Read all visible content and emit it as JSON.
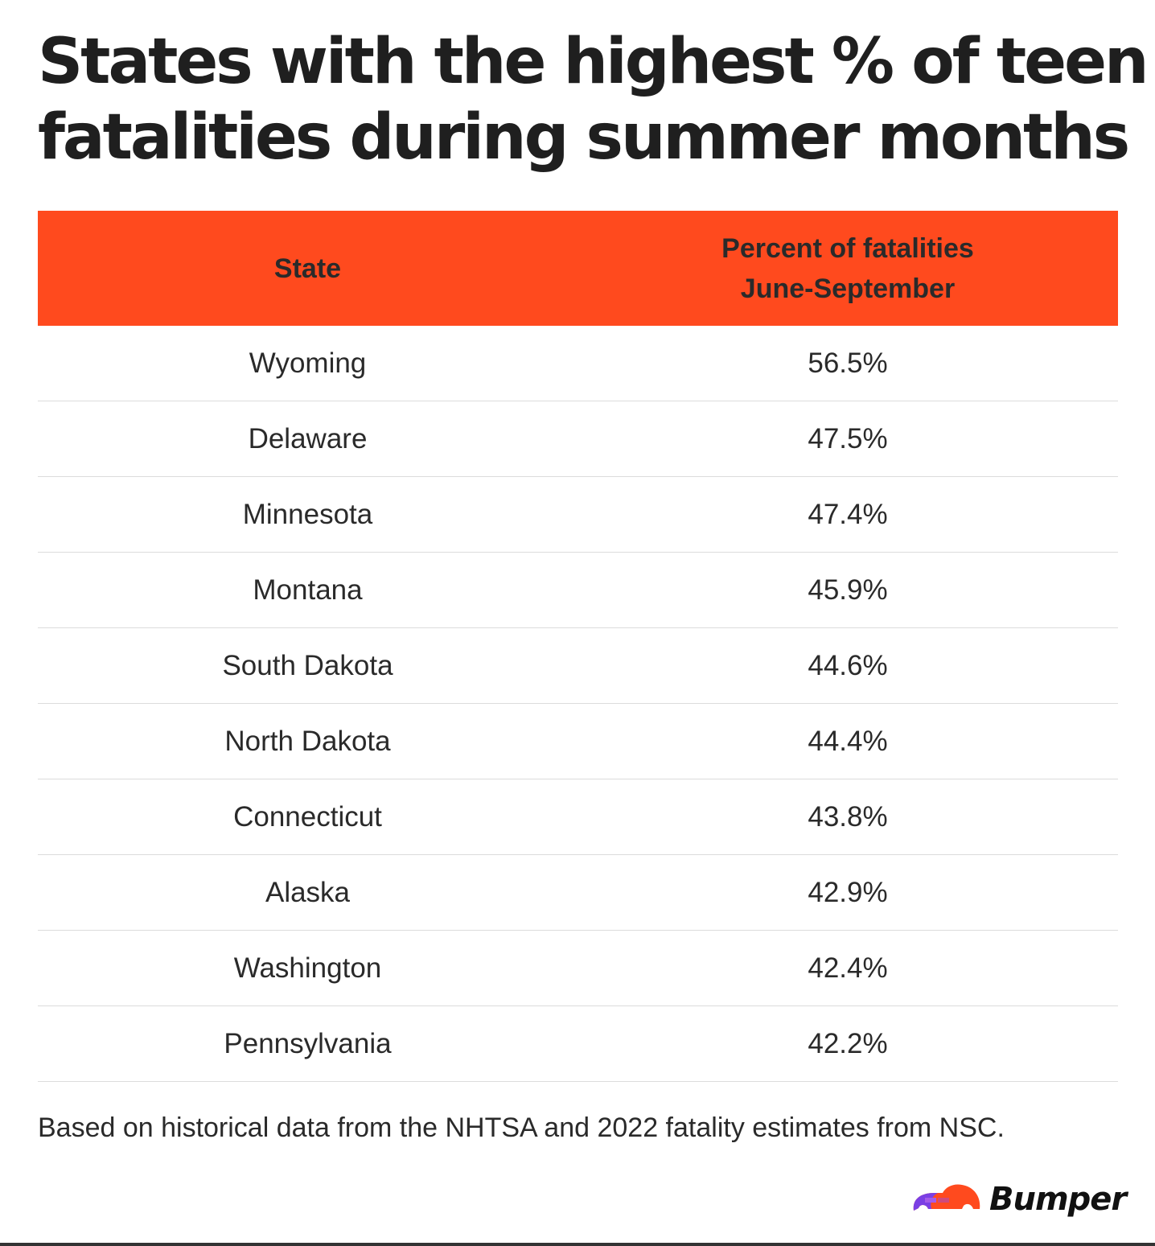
{
  "title": "States with the highest % of teen fatalities during summer months",
  "colors": {
    "header": "#ff4a1e",
    "logo_purple": "#7b3fe4",
    "logo_orange": "#ff4a1e"
  },
  "chart_data": {
    "type": "table",
    "title": "States with the highest % of teen fatalities during summer months",
    "columns": [
      "State",
      "Percent of fatalities June-September"
    ],
    "header": {
      "state": "State",
      "percent_line1": "Percent of fatalities",
      "percent_line2": "June-September"
    },
    "rows": [
      {
        "state": "Wyoming",
        "percent": "56.5%"
      },
      {
        "state": "Delaware",
        "percent": "47.5%"
      },
      {
        "state": "Minnesota",
        "percent": "47.4%"
      },
      {
        "state": "Montana",
        "percent": "45.9%"
      },
      {
        "state": "South Dakota",
        "percent": "44.6%"
      },
      {
        "state": "North Dakota",
        "percent": "44.4%"
      },
      {
        "state": "Connecticut",
        "percent": "43.8%"
      },
      {
        "state": "Alaska",
        "percent": "42.9%"
      },
      {
        "state": "Washington",
        "percent": "42.4%"
      },
      {
        "state": "Pennsylvania",
        "percent": "42.2%"
      }
    ]
  },
  "footnote": "Based on historical data from the NHTSA and 2022 fatality estimates from NSC.",
  "logo": {
    "text": "Bumper",
    "icon": "car-icon"
  }
}
